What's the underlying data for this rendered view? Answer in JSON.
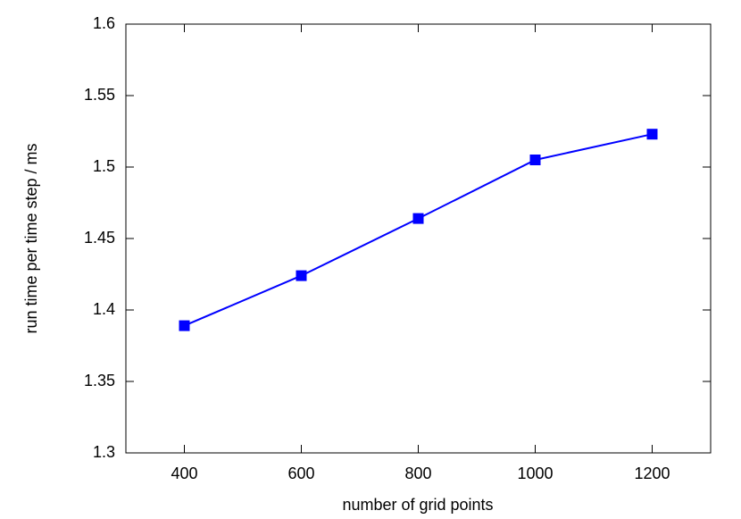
{
  "chart_data": {
    "type": "line",
    "x_label": "number of grid points",
    "y_label": "run time per time step / ms",
    "x": [
      400,
      600,
      800,
      1000,
      1200
    ],
    "series": [
      {
        "color": "#0000ff",
        "values": [
          1.389,
          1.424,
          1.464,
          1.505,
          1.523
        ]
      }
    ],
    "xlim": [
      300,
      1300
    ],
    "xticks": [
      400,
      600,
      800,
      1000,
      1200
    ],
    "ylim": [
      1.3,
      1.6
    ],
    "yticks": [
      1.3,
      1.35,
      1.4,
      1.45,
      1.5,
      1.55,
      1.6
    ],
    "grid": false
  }
}
